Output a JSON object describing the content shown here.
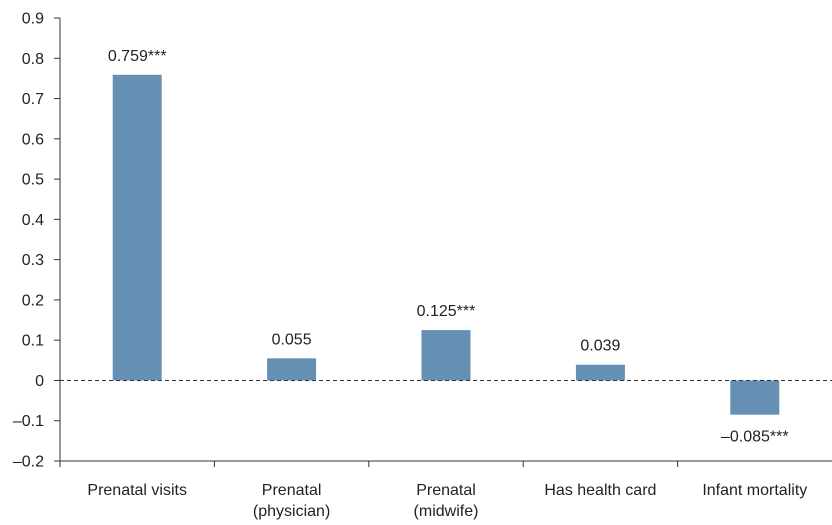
{
  "chart_data": {
    "type": "bar",
    "title": "",
    "xlabel": "",
    "ylabel": "",
    "categories": [
      [
        "Prenatal visits"
      ],
      [
        "Prenatal",
        "(physician)"
      ],
      [
        "Prenatal",
        "(midwife)"
      ],
      [
        "Has health card"
      ],
      [
        "Infant mortality"
      ]
    ],
    "values": [
      0.759,
      0.055,
      0.125,
      0.039,
      -0.085
    ],
    "data_labels": [
      "0.759***",
      "0.055",
      "0.125***",
      "0.039",
      "–0.085***"
    ],
    "ylim": [
      -0.2,
      0.9
    ],
    "yticks": [
      -0.2,
      -0.1,
      0,
      0.1,
      0.2,
      0.3,
      0.4,
      0.5,
      0.6,
      0.7,
      0.8,
      0.9
    ],
    "ytick_labels": [
      "–0.2",
      "–0.1",
      "0",
      "0.1",
      "0.2",
      "0.3",
      "0.4",
      "0.5",
      "0.6",
      "0.7",
      "0.8",
      "0.9"
    ],
    "grid": false,
    "zero_line": "dashed",
    "colors": {
      "bar": "#6590b4",
      "axis": "#333333",
      "zero_line": "#333333",
      "text": "#222222"
    }
  }
}
